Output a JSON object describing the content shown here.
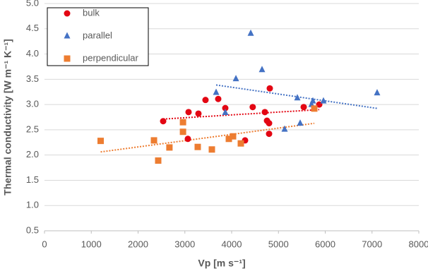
{
  "chart_data": {
    "type": "scatter",
    "x_label": "Vp [m s⁻¹]",
    "y_label": "Thermal conductivity [W m⁻¹ K⁻¹]",
    "xlim": [
      0,
      8000
    ],
    "xticks": [
      0,
      1000,
      2000,
      3000,
      4000,
      5000,
      6000,
      7000,
      8000
    ],
    "ylim": [
      0.5,
      5
    ],
    "yticks": [
      0.5,
      {
        "value": 1,
        "label": "1.0"
      },
      1.5,
      {
        "value": 2,
        "label": "2.0"
      },
      2.5,
      {
        "value": 3,
        "label": "3.0"
      },
      3.5,
      {
        "value": 4,
        "label": "4.0"
      },
      4.5,
      {
        "value": 5,
        "label": "5.0"
      }
    ],
    "grid": true,
    "legend": "upper left",
    "trendline": "linear",
    "series": [
      {
        "name": "bulk",
        "color": "#e30613",
        "marker": "circle",
        "x": [
          2536,
          3079,
          3290,
          3441,
          3713,
          3064,
          3864,
          4450,
          4287,
          4710,
          4755,
          4800,
          4800,
          4815,
          5540,
          5872
        ],
        "values": [
          2.67,
          2.85,
          2.82,
          3.09,
          3.11,
          2.32,
          2.93,
          2.95,
          2.29,
          2.85,
          2.68,
          2.63,
          2.42,
          3.32,
          2.95,
          3.0
        ]
      },
      {
        "name": "parallel",
        "color": "#4472c4",
        "marker": "triangle",
        "x": [
          3668,
          4091,
          4408,
          4649,
          3864,
          5132,
          5404,
          5464,
          5706,
          5736,
          5962,
          7109
        ],
        "values": [
          3.24,
          3.51,
          4.41,
          3.69,
          2.84,
          2.51,
          3.13,
          2.63,
          3.0,
          3.07,
          3.07,
          3.23
        ]
      },
      {
        "name": "perpendicular",
        "color": "#ed7d31",
        "marker": "square",
        "x": [
          1200,
          2340,
          2430,
          2670,
          2960,
          2960,
          3275,
          3577,
          3940,
          4030,
          4196,
          5766
        ],
        "values": [
          2.28,
          2.29,
          1.89,
          2.15,
          2.65,
          2.46,
          2.16,
          2.11,
          2.32,
          2.37,
          2.23,
          2.92
        ]
      }
    ]
  }
}
